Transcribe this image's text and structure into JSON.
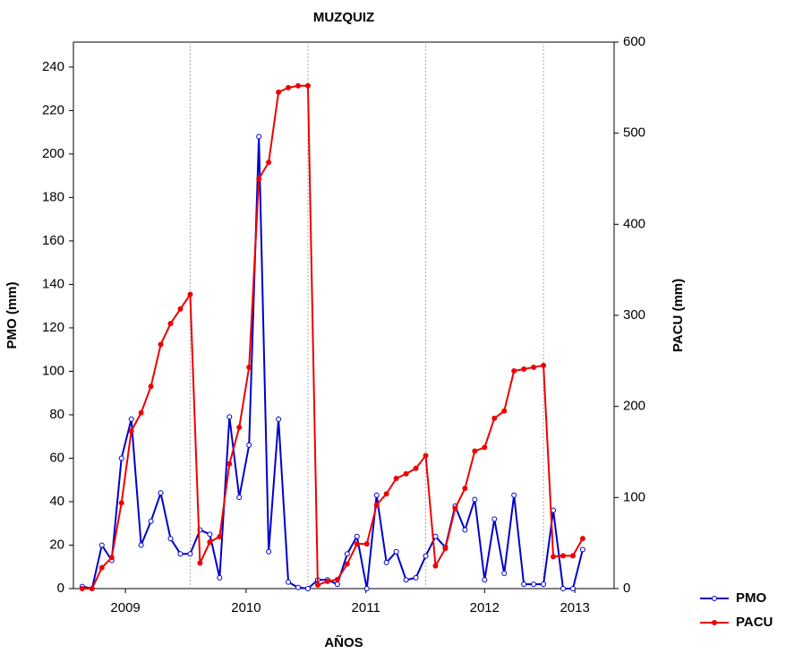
{
  "chart_data": {
    "type": "line",
    "title": "MUZQUIZ",
    "x_label": "AÑOS",
    "y_label": "PMO (mm)",
    "y2_label": "PACU (mm)",
    "x": [
      1,
      2,
      3,
      4,
      5,
      6,
      7,
      8,
      9,
      10,
      11,
      12,
      13,
      14,
      15,
      16,
      17,
      18,
      19,
      20,
      21,
      22,
      23,
      24,
      25,
      26,
      27,
      28,
      29,
      30,
      31,
      32,
      33,
      34,
      35,
      36,
      37,
      38,
      39,
      40,
      41,
      42,
      43,
      44,
      45,
      46,
      47,
      48,
      49,
      50,
      51,
      52
    ],
    "xlim": [
      0.1,
      55.2
    ],
    "xticks": [
      {
        "value": 5.4,
        "label": "2009"
      },
      {
        "value": 17.7,
        "label": "2010"
      },
      {
        "value": 29.9,
        "label": "2011"
      },
      {
        "value": 42,
        "label": "2012"
      },
      {
        "value": 51.2,
        "label": "2013"
      }
    ],
    "vlines": [
      12,
      24,
      36,
      48
    ],
    "ylim": [
      0,
      251.5
    ],
    "yticks": [
      0,
      20,
      40,
      60,
      80,
      100,
      120,
      140,
      160,
      180,
      200,
      220,
      240
    ],
    "y2lim": [
      0,
      600
    ],
    "y2ticks": [
      0,
      100,
      200,
      300,
      400,
      500,
      600
    ],
    "legend": "right-bottom",
    "series": [
      {
        "name": "PMO",
        "color": "#0000cc",
        "marker": "open",
        "values": [
          1,
          0,
          20,
          13,
          60,
          78,
          20,
          31,
          44,
          23,
          16,
          16,
          27,
          25,
          5,
          79,
          42,
          66,
          208,
          17,
          78,
          3,
          0.5,
          0,
          4,
          4,
          2,
          16,
          24,
          0,
          43,
          12,
          17,
          4,
          5,
          15,
          24,
          19,
          38,
          27,
          41,
          4,
          32,
          7,
          43,
          2,
          2,
          2,
          36,
          0,
          0,
          18
        ]
      },
      {
        "name": "PACU",
        "color": "#ee0000",
        "marker": "filled",
        "axis": "y2",
        "values": [
          0,
          0,
          23,
          34,
          94,
          173,
          193,
          222,
          268,
          291,
          307,
          323,
          28,
          51,
          57,
          137,
          177,
          243,
          450,
          468,
          545,
          550,
          552,
          552,
          4,
          8,
          10,
          27,
          49,
          49,
          92,
          104,
          121,
          126,
          132,
          146,
          25,
          44,
          88,
          110,
          151,
          155,
          187,
          195,
          239,
          241,
          243,
          245,
          35,
          36,
          36,
          55
        ]
      }
    ]
  }
}
